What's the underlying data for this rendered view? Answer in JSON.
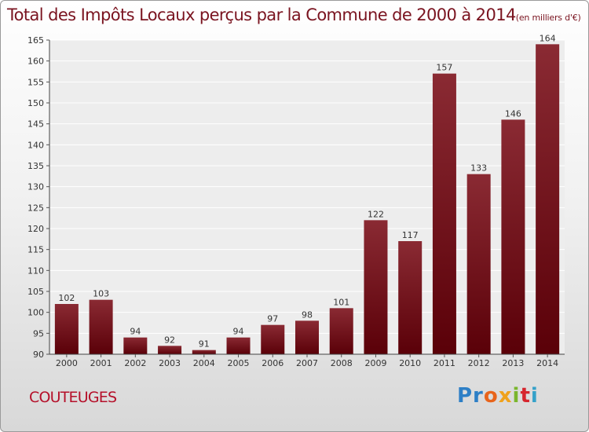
{
  "chart_data": {
    "type": "bar",
    "title": "Total des Impôts Locaux perçus par la Commune de 2000 à 2014",
    "subtitle": "(en milliers d'€)",
    "categories": [
      "2000",
      "2001",
      "2002",
      "2003",
      "2004",
      "2005",
      "2006",
      "2007",
      "2008",
      "2009",
      "2010",
      "2011",
      "2012",
      "2013",
      "2014"
    ],
    "values": [
      102,
      103,
      94,
      92,
      91,
      94,
      97,
      98,
      101,
      122,
      117,
      157,
      133,
      146,
      164
    ],
    "ylim": [
      90,
      165
    ],
    "yticks": [
      90,
      95,
      100,
      105,
      110,
      115,
      120,
      125,
      130,
      135,
      140,
      145,
      150,
      155,
      160,
      165
    ],
    "grid": true,
    "legend": "none",
    "bar_color": "#7d1a22",
    "text_color": "#7a1420"
  },
  "footer": {
    "commune": "COUTEUGES",
    "logo": {
      "p1": "Pr",
      "p2": "o",
      "p3": "x",
      "p4": "i",
      "p5": "t",
      "p6": "i"
    }
  }
}
